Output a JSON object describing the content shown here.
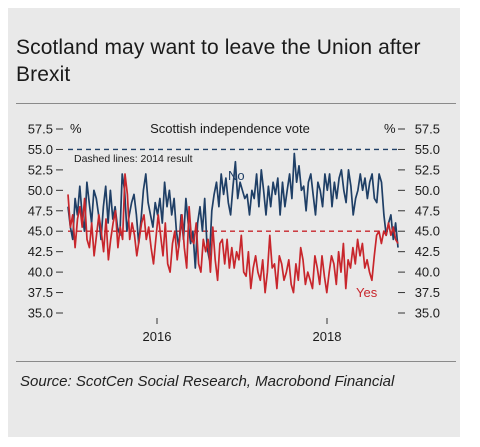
{
  "page": {
    "title": "Scotland may want to leave the Union after Brexit",
    "source": "Source: ScotCen Social Research, Macrobond Financial"
  },
  "chart_data": {
    "type": "line",
    "title": "Scottish independence vote",
    "ylabel_left": "%",
    "ylabel_right": "%",
    "ylim": [
      35.0,
      57.5
    ],
    "yticks": [
      "57.5",
      "55.0",
      "52.5",
      "50.0",
      "47.5",
      "45.0",
      "42.5",
      "40.0",
      "37.5",
      "35.0"
    ],
    "x_ticks": [
      "2016",
      "2018"
    ],
    "annotation": "Dashed lines: 2014 result",
    "reference_lines": [
      {
        "series": "No",
        "value": 55.0,
        "color": "#1f3f66"
      },
      {
        "series": "Yes",
        "value": 45.0,
        "color": "#c8262c"
      }
    ],
    "series": [
      {
        "name": "No",
        "color": "#1f3f66",
        "values": [
          48.0,
          45.5,
          44.0,
          49.0,
          47.0,
          50.5,
          47.0,
          45.0,
          51.0,
          48.5,
          46.0,
          50.0,
          49.0,
          47.0,
          44.0,
          48.0,
          50.5,
          46.0,
          50.0,
          46.5,
          48.0,
          45.5,
          44.5,
          52.0,
          50.0,
          45.0,
          47.0,
          48.5,
          49.5,
          47.0,
          43.5,
          46.5,
          50.0,
          52.0,
          48.5,
          47.0,
          45.5,
          48.5,
          47.0,
          49.0,
          46.0,
          51.0,
          48.0,
          50.0,
          47.0,
          49.0,
          45.0,
          43.0,
          47.0,
          44.0,
          49.0,
          46.0,
          43.5,
          45.0,
          40.5,
          46.0,
          48.0,
          45.0,
          49.0,
          43.0,
          41.5,
          47.5,
          49.5,
          51.0,
          48.0,
          52.0,
          49.5,
          51.5,
          48.5,
          47.0,
          50.5,
          53.5,
          49.0,
          51.0,
          50.0,
          49.0,
          49.5,
          47.0,
          50.0,
          49.0,
          52.0,
          48.0,
          52.5,
          50.0,
          47.0,
          50.5,
          48.0,
          51.0,
          49.5,
          51.5,
          47.0,
          51.0,
          48.0,
          50.0,
          52.0,
          49.0,
          54.5,
          51.0,
          53.0,
          50.0,
          50.5,
          47.5,
          51.0,
          52.0,
          49.5,
          47.0,
          51.0,
          50.0,
          48.0,
          52.0,
          50.0,
          52.0,
          48.0,
          51.0,
          49.0,
          51.5,
          52.5,
          50.0,
          48.5,
          52.5,
          50.5,
          47.0,
          49.0,
          50.0,
          52.0,
          50.0,
          51.5,
          49.0,
          51.0,
          52.0,
          49.0,
          48.5,
          52.0,
          51.0,
          47.0,
          44.5,
          46.0,
          47.0,
          44.0,
          46.0,
          43.0
        ]
      },
      {
        "name": "Yes",
        "color": "#c8262c",
        "values": [
          49.5,
          45.5,
          47.0,
          43.0,
          46.5,
          48.0,
          45.5,
          49.0,
          44.0,
          43.0,
          46.0,
          42.0,
          44.5,
          47.0,
          45.0,
          42.5,
          46.5,
          41.5,
          44.0,
          46.0,
          47.5,
          43.0,
          45.5,
          44.0,
          52.0,
          49.5,
          44.0,
          46.0,
          44.5,
          42.0,
          44.0,
          46.0,
          47.0,
          44.0,
          45.5,
          43.0,
          41.0,
          44.0,
          47.0,
          44.5,
          42.0,
          46.0,
          41.0,
          40.0,
          43.5,
          45.0,
          41.5,
          44.0,
          47.0,
          43.0,
          40.5,
          48.0,
          44.0,
          43.5,
          46.0,
          41.0,
          40.0,
          44.0,
          42.5,
          44.0,
          40.0,
          45.5,
          41.5,
          39.0,
          43.5,
          44.0,
          41.0,
          44.0,
          40.5,
          43.0,
          40.5,
          42.5,
          41.5,
          44.5,
          40.0,
          39.5,
          42.5,
          38.0,
          40.5,
          42.0,
          40.0,
          39.0,
          41.5,
          37.5,
          40.0,
          44.5,
          40.5,
          41.0,
          38.0,
          42.0,
          41.0,
          39.0,
          40.0,
          41.5,
          38.5,
          37.5,
          41.0,
          39.0,
          43.0,
          41.5,
          38.5,
          40.0,
          39.0,
          38.0,
          42.0,
          40.5,
          38.5,
          42.0,
          39.5,
          37.5,
          40.0,
          42.0,
          41.0,
          38.5,
          42.5,
          40.0,
          43.5,
          38.0,
          41.5,
          40.5,
          43.0,
          41.0,
          44.0,
          42.0,
          43.5,
          40.5,
          41.5,
          40.0,
          39.0,
          42.0,
          44.5,
          45.0,
          43.5,
          45.0,
          44.5,
          46.0,
          44.5,
          45.5,
          44.0,
          43.5
        ]
      }
    ]
  }
}
